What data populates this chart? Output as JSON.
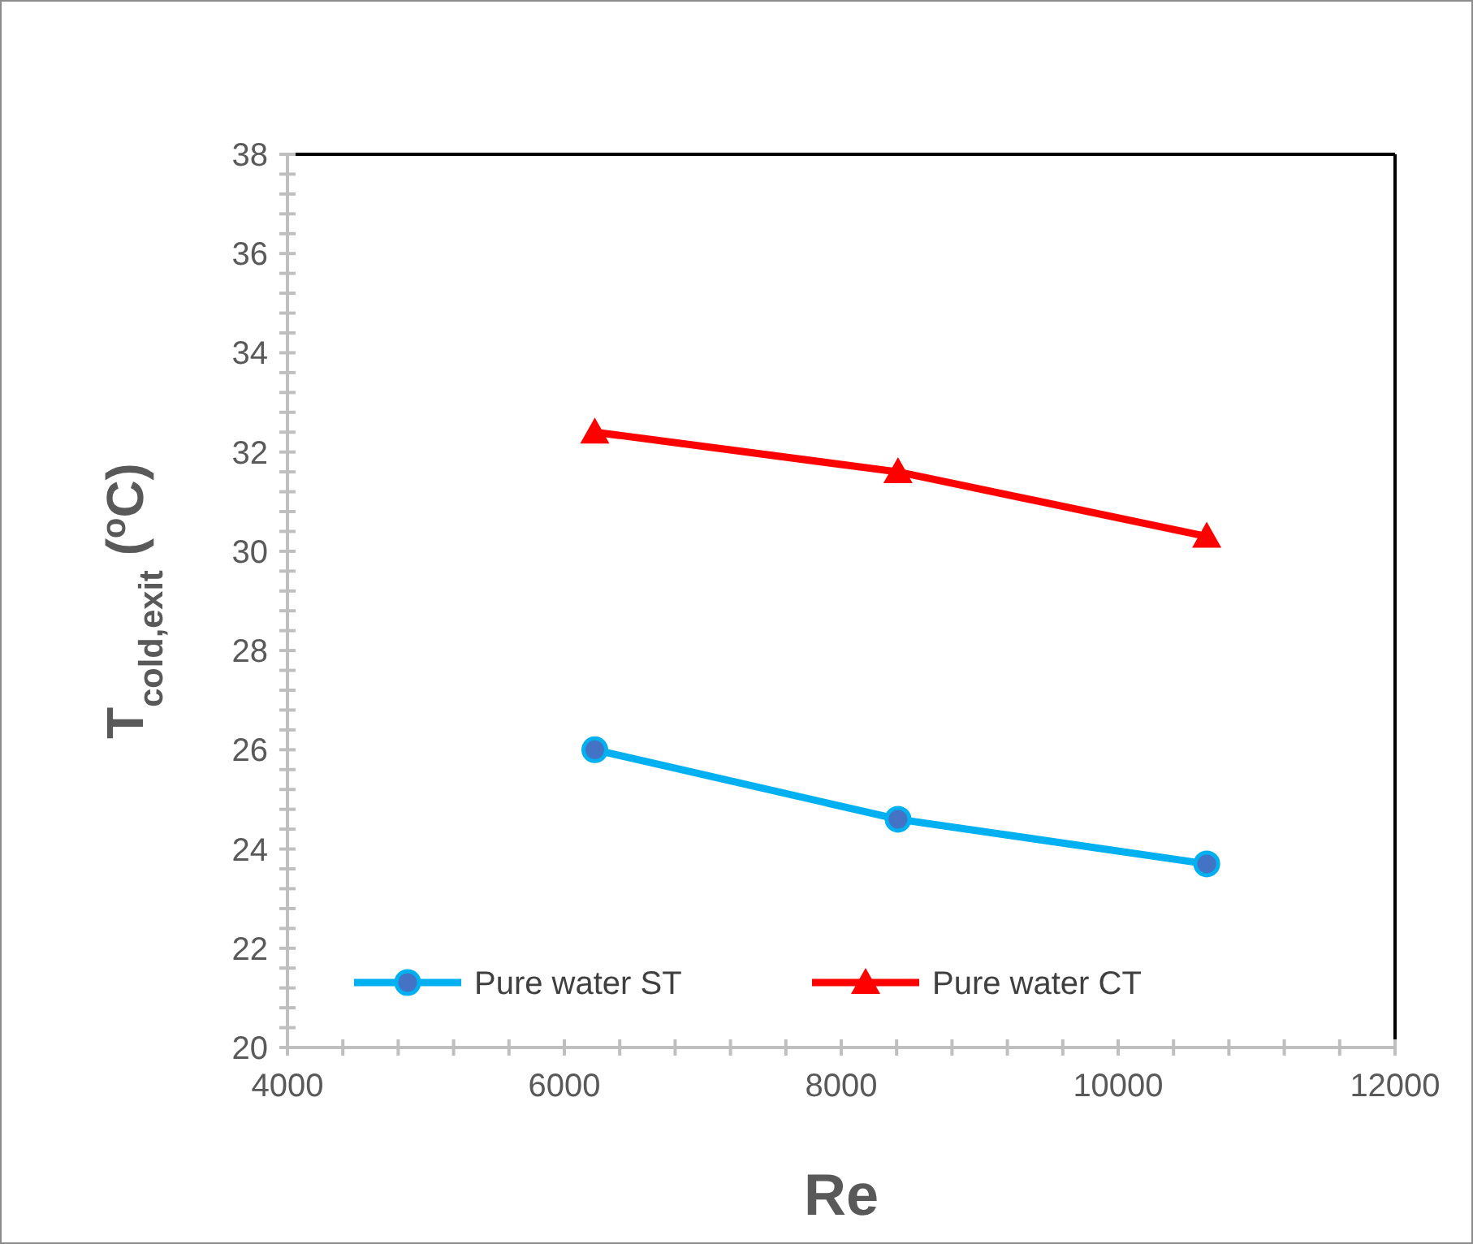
{
  "chart_data": {
    "type": "line",
    "xlabel": "Re",
    "ylabel": "T$_{cold,exit}$  ($^{o}$C)",
    "xlim": [
      4000,
      12000
    ],
    "ylim": [
      20,
      38
    ],
    "xticks": [
      4000,
      {
        "value": 4400,
        "label": null
      },
      {
        "value": 4800,
        "label": null
      },
      {
        "value": 5200,
        "label": null
      },
      {
        "value": 5600,
        "label": null
      },
      6000,
      {
        "value": 6400,
        "label": null
      },
      {
        "value": 6800,
        "label": null
      },
      {
        "value": 7200,
        "label": null
      },
      {
        "value": 7600,
        "label": null
      },
      8000,
      {
        "value": 8400,
        "label": null
      },
      {
        "value": 8800,
        "label": null
      },
      {
        "value": 9200,
        "label": null
      },
      {
        "value": 9600,
        "label": null
      },
      10000,
      {
        "value": 10400,
        "label": null
      },
      {
        "value": 10800,
        "label": null
      },
      {
        "value": 11200,
        "label": null
      },
      {
        "value": 11600,
        "label": null
      },
      12000
    ],
    "yticks": [
      20,
      {
        "value": 20.4,
        "label": null
      },
      {
        "value": 20.8,
        "label": null
      },
      {
        "value": 21.2,
        "label": null
      },
      {
        "value": 21.6,
        "label": null
      },
      22,
      {
        "value": 22.4,
        "label": null
      },
      {
        "value": 22.8,
        "label": null
      },
      {
        "value": 23.2,
        "label": null
      },
      {
        "value": 23.6,
        "label": null
      },
      24,
      {
        "value": 24.4,
        "label": null
      },
      {
        "value": 24.8,
        "label": null
      },
      {
        "value": 25.2,
        "label": null
      },
      {
        "value": 25.6,
        "label": null
      },
      26,
      {
        "value": 26.4,
        "label": null
      },
      {
        "value": 26.8,
        "label": null
      },
      {
        "value": 27.2,
        "label": null
      },
      {
        "value": 27.6,
        "label": null
      },
      28,
      {
        "value": 28.4,
        "label": null
      },
      {
        "value": 28.8,
        "label": null
      },
      {
        "value": 29.2,
        "label": null
      },
      {
        "value": 29.6,
        "label": null
      },
      30,
      {
        "value": 30.4,
        "label": null
      },
      {
        "value": 30.8,
        "label": null
      },
      {
        "value": 31.2,
        "label": null
      },
      {
        "value": 31.6,
        "label": null
      },
      32,
      {
        "value": 32.4,
        "label": null
      },
      {
        "value": 32.8,
        "label": null
      },
      {
        "value": 33.2,
        "label": null
      },
      {
        "value": 33.6,
        "label": null
      },
      34,
      {
        "value": 34.4,
        "label": null
      },
      {
        "value": 34.8,
        "label": null
      },
      {
        "value": 35.2,
        "label": null
      },
      {
        "value": 35.6,
        "label": null
      },
      36,
      {
        "value": 36.4,
        "label": null
      },
      {
        "value": 36.8,
        "label": null
      },
      {
        "value": 37.2,
        "label": null
      },
      {
        "value": 37.6,
        "label": null
      },
      38
    ],
    "legend": "bottom",
    "grid": false,
    "series": [
      {
        "name": "Pure water ST",
        "color": "#00b0f0",
        "marker": "circle",
        "x": [
          6220,
          8410,
          10640
        ],
        "values": [
          26.0,
          24.6,
          23.7
        ]
      },
      {
        "name": "Pure water CT",
        "color": "#ff0000",
        "marker": "triangle",
        "x": [
          6220,
          8410,
          10640
        ],
        "values": [
          32.4,
          31.6,
          30.3
        ]
      }
    ]
  }
}
